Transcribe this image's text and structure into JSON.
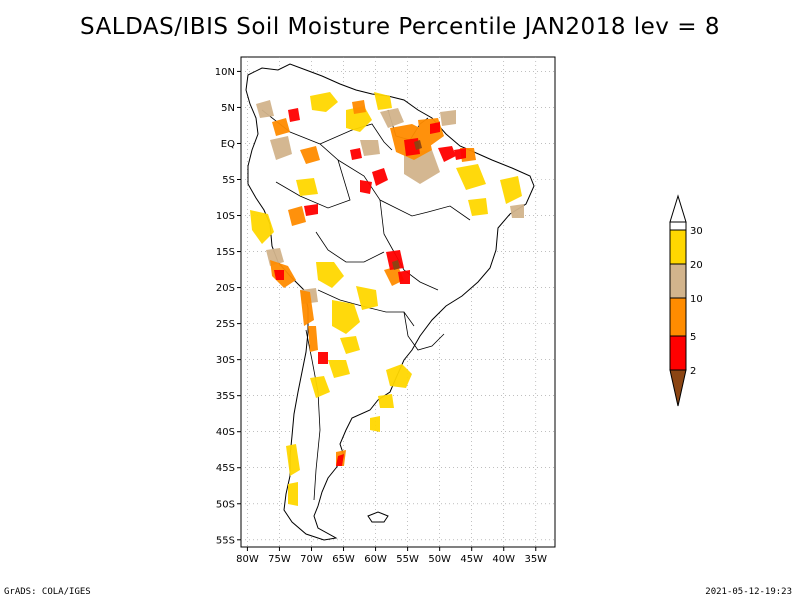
{
  "title": "SALDAS/IBIS Soil Moisture Percentile JAN2018 lev = 8",
  "footer": {
    "left": "GrADS: COLA/IGES",
    "right": "2021-05-12-19:23"
  },
  "map": {
    "lon_range": [
      -81,
      -32
    ],
    "lat_range": [
      -56,
      12
    ],
    "x_ticks": [
      "80W",
      "75W",
      "70W",
      "65W",
      "60W",
      "55W",
      "50W",
      "45W",
      "40W",
      "35W"
    ],
    "y_ticks": [
      "10N",
      "5N",
      "EQ",
      "5S",
      "10S",
      "15S",
      "20S",
      "25S",
      "30S",
      "35S",
      "40S",
      "45S",
      "50S",
      "55S"
    ],
    "gridlines": "dotted"
  },
  "colorbar": {
    "levels": [
      "2",
      "5",
      "10",
      "20",
      "30"
    ],
    "colors": {
      "below_2": "#8b4513",
      "2_5": "#ff0000",
      "5_10": "#ff8c00",
      "10_20": "#d2b48c",
      "20_30": "#ffd700",
      "above_30": "#ffffff"
    }
  }
}
